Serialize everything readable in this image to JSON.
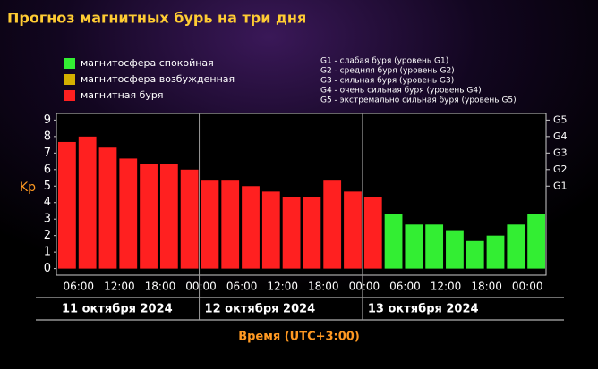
{
  "chart_data": {
    "type": "bar",
    "title": "Прогноз магнитных бурь на три дня",
    "legend": [
      {
        "name": "магнитосфера спокойная",
        "color": "#33ee33"
      },
      {
        "name": "магнитосфера возбужденная",
        "color": "#d4b000"
      },
      {
        "name": "магнитная буря",
        "color": "#ff2020"
      }
    ],
    "notes": [
      "G1 - слабая буря (уровень G1)",
      "G2 - средняя буря (уровень G2)",
      "G3 - сильная буря (уровень G3)",
      "G4 - очень сильная буря (уровень G4)",
      "G5 - экстремально сильная буря (уровень G5)"
    ],
    "y_label": "Kp",
    "x_label": "Время (UTC+3:00)",
    "values": [
      7.67,
      8,
      7.33,
      6.67,
      6.33,
      6.33,
      6,
      5.33,
      5.33,
      5,
      4.67,
      4.33,
      4.33,
      5.33,
      4.67,
      4.33,
      3.33,
      2.67,
      2.67,
      2.33,
      1.67,
      2,
      2.67,
      3.33
    ],
    "colors": [
      "#ff2020",
      "#ff2020",
      "#ff2020",
      "#ff2020",
      "#ff2020",
      "#ff2020",
      "#ff2020",
      "#ff2020",
      "#ff2020",
      "#ff2020",
      "#ff2020",
      "#ff2020",
      "#ff2020",
      "#ff2020",
      "#ff2020",
      "#ff2020",
      "#33ee33",
      "#33ee33",
      "#33ee33",
      "#33ee33",
      "#33ee33",
      "#33ee33",
      "#33ee33",
      "#33ee33"
    ],
    "time_labels": [
      "06:00",
      "12:00",
      "18:00",
      "00:00",
      "06:00",
      "12:00",
      "18:00",
      "00:00",
      "06:00",
      "12:00",
      "18:00",
      "00:00"
    ],
    "days": [
      "11 октября 2024",
      "12 октября 2024",
      "13 октября 2024"
    ],
    "ylim": [
      -0.4,
      9.4
    ],
    "yticks": [
      0,
      1,
      2,
      3,
      4,
      5,
      6,
      7,
      8,
      9
    ],
    "y2ticks": [
      {
        "value": 5,
        "label": "G1"
      },
      {
        "value": 6,
        "label": "G2"
      },
      {
        "value": 7,
        "label": "G3"
      },
      {
        "value": 8,
        "label": "G4"
      },
      {
        "value": 9,
        "label": "G5"
      }
    ]
  }
}
